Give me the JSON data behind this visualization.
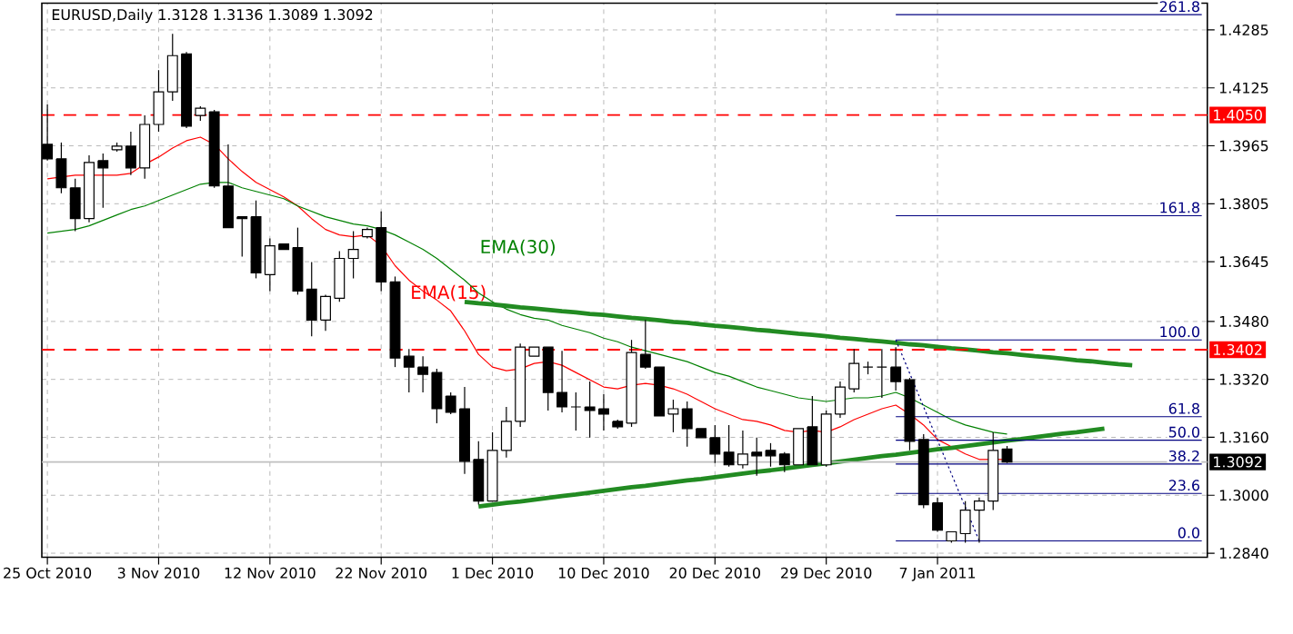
{
  "chart_data": {
    "type": "candlestick",
    "title": "EURUSD,Daily  1.3128 1.3136 1.3089 1.3092",
    "categories": [
      "25 Oct 2010",
      null,
      null,
      null,
      null,
      null,
      null,
      null,
      "3 Nov 2010",
      null,
      null,
      null,
      null,
      null,
      null,
      null,
      "12 Nov 2010",
      null,
      null,
      null,
      null,
      null,
      null,
      null,
      "22 Nov 2010",
      null,
      null,
      null,
      null,
      null,
      null,
      null,
      "1 Dec 2010",
      null,
      null,
      null,
      null,
      null,
      null,
      null,
      "10 Dec 2010",
      null,
      null,
      null,
      null,
      null,
      null,
      null,
      "20 Dec 2010",
      null,
      null,
      null,
      null,
      null,
      null,
      null,
      "29 Dec 2010",
      null,
      null,
      null,
      null,
      null,
      null,
      null,
      "7 Jan 2011",
      null,
      null,
      null,
      null,
      null,
      null,
      null,
      null,
      null,
      null,
      null,
      null,
      null,
      null,
      null,
      null,
      null,
      null,
      null
    ],
    "ohlc": [
      [
        1.3969,
        1.4079,
        1.3924,
        1.3929
      ],
      [
        1.3929,
        1.3974,
        1.3834,
        1.3849
      ],
      [
        1.3849,
        1.3874,
        1.3729,
        1.3764
      ],
      [
        1.3764,
        1.3939,
        1.3754,
        1.3919
      ],
      [
        1.3924,
        1.3944,
        1.3794,
        1.3904
      ],
      [
        1.3954,
        1.3974,
        1.3949,
        1.3964
      ],
      [
        1.3964,
        1.4004,
        1.3884,
        1.3904
      ],
      [
        1.3904,
        1.4049,
        1.3874,
        1.4024
      ],
      [
        1.4024,
        1.4174,
        1.4004,
        1.4114
      ],
      [
        1.4114,
        1.4274,
        1.4089,
        1.4214
      ],
      [
        1.4219,
        1.4224,
        1.4014,
        1.4019
      ],
      [
        1.4049,
        1.4074,
        1.4034,
        1.4069
      ],
      [
        1.4059,
        1.4064,
        1.3849,
        1.3854
      ],
      [
        1.3854,
        1.3969,
        1.3739,
        1.3739
      ],
      [
        1.3769,
        1.3769,
        1.3659,
        1.3764
      ],
      [
        1.3769,
        1.3814,
        1.3599,
        1.3614
      ],
      [
        1.3609,
        1.3709,
        1.3564,
        1.3689
      ],
      [
        1.3694,
        1.3694,
        1.3679,
        1.3679
      ],
      [
        1.3684,
        1.3739,
        1.3554,
        1.3564
      ],
      [
        1.3569,
        1.3644,
        1.3439,
        1.3484
      ],
      [
        1.3484,
        1.3554,
        1.3454,
        1.3549
      ],
      [
        1.3544,
        1.3674,
        1.3534,
        1.3654
      ],
      [
        1.3654,
        1.3729,
        1.3599,
        1.3679
      ],
      [
        1.3714,
        1.3739,
        1.3709,
        1.3734
      ],
      [
        1.3739,
        1.3784,
        1.3564,
        1.3589
      ],
      [
        1.3589,
        1.3604,
        1.3354,
        1.3379
      ],
      [
        1.3384,
        1.3404,
        1.3284,
        1.3354
      ],
      [
        1.3354,
        1.3384,
        1.3284,
        1.3334
      ],
      [
        1.3339,
        1.3349,
        1.3199,
        1.3239
      ],
      [
        1.3274,
        1.3284,
        1.3224,
        1.3229
      ],
      [
        1.3239,
        1.3299,
        1.3059,
        1.3094
      ],
      [
        1.3099,
        1.3149,
        1.2974,
        1.2984
      ],
      [
        1.2984,
        1.3174,
        1.2984,
        1.3124
      ],
      [
        1.3124,
        1.3244,
        1.3104,
        1.3204
      ],
      [
        1.3204,
        1.3419,
        1.3189,
        1.3409
      ],
      [
        1.3384,
        1.3409,
        1.3384,
        1.3409
      ],
      [
        1.3409,
        1.3409,
        1.3234,
        1.3284
      ],
      [
        1.3284,
        1.3399,
        1.3229,
        1.3244
      ],
      [
        1.3244,
        1.3284,
        1.3179,
        1.3244
      ],
      [
        1.3244,
        1.3314,
        1.3159,
        1.3234
      ],
      [
        1.3239,
        1.3279,
        1.3179,
        1.3224
      ],
      [
        1.3204,
        1.3209,
        1.3184,
        1.3189
      ],
      [
        1.3199,
        1.3429,
        1.3189,
        1.3394
      ],
      [
        1.3389,
        1.3484,
        1.3349,
        1.3354
      ],
      [
        1.3354,
        1.3354,
        1.3219,
        1.3219
      ],
      [
        1.3224,
        1.3264,
        1.3174,
        1.3239
      ],
      [
        1.3239,
        1.3259,
        1.3134,
        1.3184
      ],
      [
        1.3184,
        1.3184,
        1.3159,
        1.3159
      ],
      [
        1.3159,
        1.3194,
        1.3089,
        1.3114
      ],
      [
        1.3119,
        1.3194,
        1.3079,
        1.3084
      ],
      [
        1.3084,
        1.3179,
        1.3074,
        1.3114
      ],
      [
        1.3119,
        1.3159,
        1.3054,
        1.3109
      ],
      [
        1.3124,
        1.3144,
        1.3079,
        1.3109
      ],
      [
        1.3114,
        1.3119,
        1.3064,
        1.3084
      ],
      [
        1.3084,
        1.3184,
        1.3084,
        1.3184
      ],
      [
        1.3189,
        1.3274,
        1.3084,
        1.3084
      ],
      [
        1.3084,
        1.3234,
        1.3079,
        1.3224
      ],
      [
        1.3224,
        1.3314,
        1.3214,
        1.3299
      ],
      [
        1.3294,
        1.3404,
        1.3284,
        1.3364
      ],
      [
        1.3354,
        1.3369,
        1.3334,
        1.3354
      ],
      [
        1.3354,
        1.3404,
        1.3269,
        1.3354
      ],
      [
        1.3354,
        1.3409,
        1.3289,
        1.3314
      ],
      [
        1.3319,
        1.3324,
        1.3124,
        1.3149
      ],
      [
        1.3154,
        1.3169,
        1.2964,
        1.2974
      ],
      [
        1.2979,
        1.2994,
        1.2899,
        1.2904
      ],
      [
        1.2874,
        1.2899,
        1.2869,
        1.2899
      ],
      [
        1.2894,
        1.2984,
        1.2869,
        1.2959
      ],
      [
        1.2959,
        1.2994,
        1.2869,
        1.2984
      ],
      [
        1.2984,
        1.3174,
        1.2959,
        1.3124
      ],
      [
        1.3128,
        1.3136,
        1.3089,
        1.3092
      ],
      null,
      null,
      null,
      null,
      null,
      null,
      null,
      null,
      null,
      null,
      null,
      null,
      null,
      null
    ],
    "series": [
      {
        "type": "line",
        "name": "EMA(15)",
        "color": "#ff0000",
        "values": [
          1.3874,
          1.3879,
          1.3884,
          1.3884,
          1.3884,
          1.3884,
          1.3889,
          1.3914,
          1.3934,
          1.3959,
          1.3979,
          1.3989,
          1.3969,
          1.3929,
          1.3894,
          1.3864,
          1.3844,
          1.3824,
          1.3799,
          1.3764,
          1.3734,
          1.3719,
          1.3714,
          1.3719,
          1.3689,
          1.3634,
          1.3594,
          1.3564,
          1.3539,
          1.3509,
          1.3454,
          1.3389,
          1.3354,
          1.3344,
          1.3349,
          1.3364,
          1.3369,
          1.3359,
          1.3339,
          1.3319,
          1.3299,
          1.3294,
          1.3304,
          1.3309,
          1.3304,
          1.3294,
          1.3279,
          1.3259,
          1.3239,
          1.3224,
          1.3209,
          1.3204,
          1.3194,
          1.3179,
          1.3174,
          1.3179,
          1.3174,
          1.3189,
          1.3209,
          1.3224,
          1.3239,
          1.3249,
          1.3224,
          1.3194,
          1.3154,
          1.3134,
          1.3114,
          1.3099,
          1.3099,
          1.3099,
          null,
          null,
          null,
          null,
          null,
          null,
          null,
          null,
          null,
          null,
          null,
          null,
          null,
          null
        ]
      },
      {
        "type": "line",
        "name": "EMA(30)",
        "color": "#008000",
        "values": [
          1.3724,
          1.3729,
          1.3734,
          1.3744,
          1.3759,
          1.3774,
          1.3789,
          1.3799,
          1.3814,
          1.3829,
          1.3844,
          1.3859,
          1.3864,
          1.3864,
          1.3849,
          1.3839,
          1.3829,
          1.3819,
          1.3799,
          1.3784,
          1.3769,
          1.3759,
          1.3749,
          1.3744,
          1.3734,
          1.3719,
          1.3699,
          1.3679,
          1.3654,
          1.3624,
          1.3594,
          1.3559,
          1.3534,
          1.3514,
          1.3499,
          1.3489,
          1.3484,
          1.3469,
          1.3459,
          1.3449,
          1.3434,
          1.3424,
          1.3409,
          1.3399,
          1.3389,
          1.3379,
          1.3369,
          1.3354,
          1.3339,
          1.3329,
          1.3314,
          1.3299,
          1.3289,
          1.3279,
          1.3269,
          1.3264,
          1.3259,
          1.3264,
          1.3269,
          1.3269,
          1.3274,
          1.3284,
          1.3269,
          1.3249,
          1.3229,
          1.3209,
          1.3194,
          1.3184,
          1.3174,
          1.3169,
          null,
          null,
          null,
          null,
          null,
          null,
          null,
          null,
          null,
          null,
          null,
          null,
          null,
          null
        ]
      },
      {
        "type": "line",
        "color": "#228b22",
        "values": [
          null,
          null,
          null,
          null,
          null,
          null,
          null,
          null,
          null,
          null,
          null,
          null,
          null,
          null,
          null,
          null,
          null,
          null,
          null,
          null,
          null,
          null,
          null,
          null,
          null,
          null,
          null,
          null,
          null,
          null,
          1.3534,
          1.353,
          1.3527,
          1.3523,
          1.3519,
          1.3516,
          1.3512,
          1.3508,
          1.3505,
          1.3501,
          1.3498,
          1.3494,
          1.349,
          1.3487,
          1.3483,
          1.3479,
          1.3476,
          1.3472,
          1.3468,
          1.3465,
          1.3461,
          1.3457,
          1.3454,
          1.345,
          1.3446,
          1.3443,
          1.3439,
          1.3435,
          1.3432,
          1.3428,
          1.3425,
          1.3421,
          1.3417,
          1.3414,
          1.341,
          1.3406,
          1.3403,
          1.3399,
          1.3395,
          1.3392,
          1.3388,
          1.3384,
          1.3381,
          1.3377,
          1.3373,
          1.337,
          1.3366,
          1.3362,
          1.3359,
          null,
          null,
          null,
          null,
          null
        ]
      },
      {
        "type": "line",
        "color": "#228b22",
        "values": [
          null,
          null,
          null,
          null,
          null,
          null,
          null,
          null,
          null,
          null,
          null,
          null,
          null,
          null,
          null,
          null,
          null,
          null,
          null,
          null,
          null,
          null,
          null,
          null,
          null,
          null,
          null,
          null,
          null,
          null,
          null,
          1.2969,
          1.2974,
          1.2979,
          1.2983,
          1.2988,
          1.2993,
          1.2998,
          1.3002,
          1.3007,
          1.3012,
          1.3017,
          1.3022,
          1.3026,
          1.3031,
          1.3036,
          1.3041,
          1.3045,
          1.305,
          1.3055,
          1.306,
          1.3065,
          1.3069,
          1.3074,
          1.3079,
          1.3084,
          1.3088,
          1.3093,
          1.3098,
          1.3103,
          1.3108,
          1.3112,
          1.3117,
          1.3122,
          1.3127,
          1.3131,
          1.3136,
          1.3141,
          1.3146,
          1.3151,
          1.3155,
          1.316,
          1.3165,
          1.317,
          1.3174,
          1.3179,
          1.3184,
          null,
          null,
          null,
          null,
          null,
          null,
          null
        ]
      },
      {
        "type": "line",
        "color": "#000080",
        "line_style": "dotted",
        "values": [
          null,
          null,
          null,
          null,
          null,
          null,
          null,
          null,
          null,
          null,
          null,
          null,
          null,
          null,
          null,
          null,
          null,
          null,
          null,
          null,
          null,
          null,
          null,
          null,
          null,
          null,
          null,
          null,
          null,
          null,
          null,
          null,
          null,
          null,
          null,
          null,
          null,
          null,
          null,
          null,
          null,
          null,
          null,
          null,
          null,
          null,
          null,
          null,
          null,
          null,
          null,
          null,
          null,
          null,
          null,
          null,
          null,
          null,
          null,
          null,
          null,
          1.3429,
          1.3337,
          1.3244,
          1.3152,
          1.3059,
          1.2967,
          1.2874,
          null,
          null,
          null,
          null,
          null,
          null,
          null,
          null,
          null,
          null,
          null,
          null,
          null,
          null,
          null,
          null
        ]
      },
      {
        "type": "line",
        "name": "0.0",
        "color": "#000080",
        "values": [
          null,
          null,
          null,
          null,
          null,
          null,
          null,
          null,
          null,
          null,
          null,
          null,
          null,
          null,
          null,
          null,
          null,
          null,
          null,
          null,
          null,
          null,
          null,
          null,
          null,
          null,
          null,
          null,
          null,
          null,
          null,
          null,
          null,
          null,
          null,
          null,
          null,
          null,
          null,
          null,
          null,
          null,
          null,
          null,
          null,
          null,
          null,
          null,
          null,
          null,
          null,
          null,
          null,
          null,
          null,
          null,
          null,
          null,
          null,
          null,
          null,
          1.2874,
          1.2874,
          1.2874,
          1.2874,
          1.2874,
          1.2874,
          1.2874,
          1.2874,
          1.2874,
          1.2874,
          1.2874,
          1.2874,
          1.2874,
          1.2874,
          1.2874,
          1.2874,
          1.2874,
          1.2874,
          1.2874,
          1.2874,
          1.2874,
          1.2874,
          1.2874
        ]
      },
      {
        "type": "line",
        "name": "23.6",
        "color": "#000080",
        "values": [
          null,
          null,
          null,
          null,
          null,
          null,
          null,
          null,
          null,
          null,
          null,
          null,
          null,
          null,
          null,
          null,
          null,
          null,
          null,
          null,
          null,
          null,
          null,
          null,
          null,
          null,
          null,
          null,
          null,
          null,
          null,
          null,
          null,
          null,
          null,
          null,
          null,
          null,
          null,
          null,
          null,
          null,
          null,
          null,
          null,
          null,
          null,
          null,
          null,
          null,
          null,
          null,
          null,
          null,
          null,
          null,
          null,
          null,
          null,
          null,
          null,
          1.3005,
          1.3005,
          1.3005,
          1.3005,
          1.3005,
          1.3005,
          1.3005,
          1.3005,
          1.3005,
          1.3005,
          1.3005,
          1.3005,
          1.3005,
          1.3005,
          1.3005,
          1.3005,
          1.3005,
          1.3005,
          1.3005,
          1.3005,
          1.3005,
          1.3005,
          1.3005
        ]
      },
      {
        "type": "line",
        "name": "38.2",
        "color": "#000080",
        "values": [
          null,
          null,
          null,
          null,
          null,
          null,
          null,
          null,
          null,
          null,
          null,
          null,
          null,
          null,
          null,
          null,
          null,
          null,
          null,
          null,
          null,
          null,
          null,
          null,
          null,
          null,
          null,
          null,
          null,
          null,
          null,
          null,
          null,
          null,
          null,
          null,
          null,
          null,
          null,
          null,
          null,
          null,
          null,
          null,
          null,
          null,
          null,
          null,
          null,
          null,
          null,
          null,
          null,
          null,
          null,
          null,
          null,
          null,
          null,
          null,
          null,
          1.3086,
          1.3086,
          1.3086,
          1.3086,
          1.3086,
          1.3086,
          1.3086,
          1.3086,
          1.3086,
          1.3086,
          1.3086,
          1.3086,
          1.3086,
          1.3086,
          1.3086,
          1.3086,
          1.3086,
          1.3086,
          1.3086,
          1.3086,
          1.3086,
          1.3086,
          1.3086
        ]
      },
      {
        "type": "line",
        "name": "50.0",
        "color": "#000080",
        "values": [
          null,
          null,
          null,
          null,
          null,
          null,
          null,
          null,
          null,
          null,
          null,
          null,
          null,
          null,
          null,
          null,
          null,
          null,
          null,
          null,
          null,
          null,
          null,
          null,
          null,
          null,
          null,
          null,
          null,
          null,
          null,
          null,
          null,
          null,
          null,
          null,
          null,
          null,
          null,
          null,
          null,
          null,
          null,
          null,
          null,
          null,
          null,
          null,
          null,
          null,
          null,
          null,
          null,
          null,
          null,
          null,
          null,
          null,
          null,
          null,
          null,
          1.3152,
          1.3152,
          1.3152,
          1.3152,
          1.3152,
          1.3152,
          1.3152,
          1.3152,
          1.3152,
          1.3152,
          1.3152,
          1.3152,
          1.3152,
          1.3152,
          1.3152,
          1.3152,
          1.3152,
          1.3152,
          1.3152,
          1.3152,
          1.3152,
          1.3152,
          1.3152
        ]
      },
      {
        "type": "line",
        "name": "61.8",
        "color": "#000080",
        "values": [
          null,
          null,
          null,
          null,
          null,
          null,
          null,
          null,
          null,
          null,
          null,
          null,
          null,
          null,
          null,
          null,
          null,
          null,
          null,
          null,
          null,
          null,
          null,
          null,
          null,
          null,
          null,
          null,
          null,
          null,
          null,
          null,
          null,
          null,
          null,
          null,
          null,
          null,
          null,
          null,
          null,
          null,
          null,
          null,
          null,
          null,
          null,
          null,
          null,
          null,
          null,
          null,
          null,
          null,
          null,
          null,
          null,
          null,
          null,
          null,
          null,
          1.3217,
          1.3217,
          1.3217,
          1.3217,
          1.3217,
          1.3217,
          1.3217,
          1.3217,
          1.3217,
          1.3217,
          1.3217,
          1.3217,
          1.3217,
          1.3217,
          1.3217,
          1.3217,
          1.3217,
          1.3217,
          1.3217,
          1.3217,
          1.3217,
          1.3217,
          1.3217
        ]
      },
      {
        "type": "line",
        "name": "100.0",
        "color": "#000080",
        "values": [
          null,
          null,
          null,
          null,
          null,
          null,
          null,
          null,
          null,
          null,
          null,
          null,
          null,
          null,
          null,
          null,
          null,
          null,
          null,
          null,
          null,
          null,
          null,
          null,
          null,
          null,
          null,
          null,
          null,
          null,
          null,
          null,
          null,
          null,
          null,
          null,
          null,
          null,
          null,
          null,
          null,
          null,
          null,
          null,
          null,
          null,
          null,
          null,
          null,
          null,
          null,
          null,
          null,
          null,
          null,
          null,
          null,
          null,
          null,
          null,
          null,
          1.3429,
          1.3429,
          1.3429,
          1.3429,
          1.3429,
          1.3429,
          1.3429,
          1.3429,
          1.3429,
          1.3429,
          1.3429,
          1.3429,
          1.3429,
          1.3429,
          1.3429,
          1.3429,
          1.3429,
          1.3429,
          1.3429,
          1.3429,
          1.3429,
          1.3429,
          1.3429
        ]
      },
      {
        "type": "line",
        "name": "161.8",
        "color": "#000080",
        "values": [
          null,
          null,
          null,
          null,
          null,
          null,
          null,
          null,
          null,
          null,
          null,
          null,
          null,
          null,
          null,
          null,
          null,
          null,
          null,
          null,
          null,
          null,
          null,
          null,
          null,
          null,
          null,
          null,
          null,
          null,
          null,
          null,
          null,
          null,
          null,
          null,
          null,
          null,
          null,
          null,
          null,
          null,
          null,
          null,
          null,
          null,
          null,
          null,
          null,
          null,
          null,
          null,
          null,
          null,
          null,
          null,
          null,
          null,
          null,
          null,
          null,
          1.3772,
          1.3772,
          1.3772,
          1.3772,
          1.3772,
          1.3772,
          1.3772,
          1.3772,
          1.3772,
          1.3772,
          1.3772,
          1.3772,
          1.3772,
          1.3772,
          1.3772,
          1.3772,
          1.3772,
          1.3772,
          1.3772,
          1.3772,
          1.3772,
          1.3772,
          1.3772
        ]
      },
      {
        "type": "line",
        "name": "261.8",
        "color": "#000080",
        "values": [
          null,
          null,
          null,
          null,
          null,
          null,
          null,
          null,
          null,
          null,
          null,
          null,
          null,
          null,
          null,
          null,
          null,
          null,
          null,
          null,
          null,
          null,
          null,
          null,
          null,
          null,
          null,
          null,
          null,
          null,
          null,
          null,
          null,
          null,
          null,
          null,
          null,
          null,
          null,
          null,
          null,
          null,
          null,
          null,
          null,
          null,
          null,
          null,
          null,
          null,
          null,
          null,
          null,
          null,
          null,
          null,
          null,
          null,
          null,
          null,
          null,
          1.4327,
          1.4327,
          1.4327,
          1.4327,
          1.4327,
          1.4327,
          1.4327,
          1.4327,
          1.4327,
          1.4327,
          1.4327,
          1.4327,
          1.4327,
          1.4327,
          1.4327,
          1.4327,
          1.4327,
          1.4327,
          1.4327,
          1.4327,
          1.4327,
          1.4327,
          1.4327
        ]
      }
    ],
    "ref_lines": [
      {
        "axis": "y",
        "value": 1.405,
        "label": "1.4050",
        "color": "#ff0000",
        "line_style": "dashed"
      },
      {
        "axis": "y",
        "value": 1.3402,
        "label": "1.3402",
        "color": "#ff0000",
        "line_style": "dashed"
      },
      {
        "axis": "y",
        "value": 1.3092,
        "label": "1.3092",
        "color": "#c0c0c0",
        "line_style": "solid"
      }
    ],
    "ylim": [
      1.2829,
      1.4359
    ],
    "yticks": [
      {
        "value": 1.284,
        "label": "1.2840"
      },
      {
        "value": 1.3,
        "label": "1.3000"
      },
      {
        "value": 1.316,
        "label": "1.3160"
      },
      {
        "value": 1.332,
        "label": "1.3320"
      },
      {
        "value": 1.348,
        "label": "1.3480"
      },
      {
        "value": 1.3645,
        "label": "1.3645"
      },
      {
        "value": 1.3805,
        "label": "1.3805"
      },
      {
        "value": 1.3965,
        "label": "1.3965"
      },
      {
        "value": 1.4125,
        "label": "1.4125"
      },
      {
        "value": 1.4285,
        "label": "1.4285"
      }
    ],
    "grid": true
  }
}
